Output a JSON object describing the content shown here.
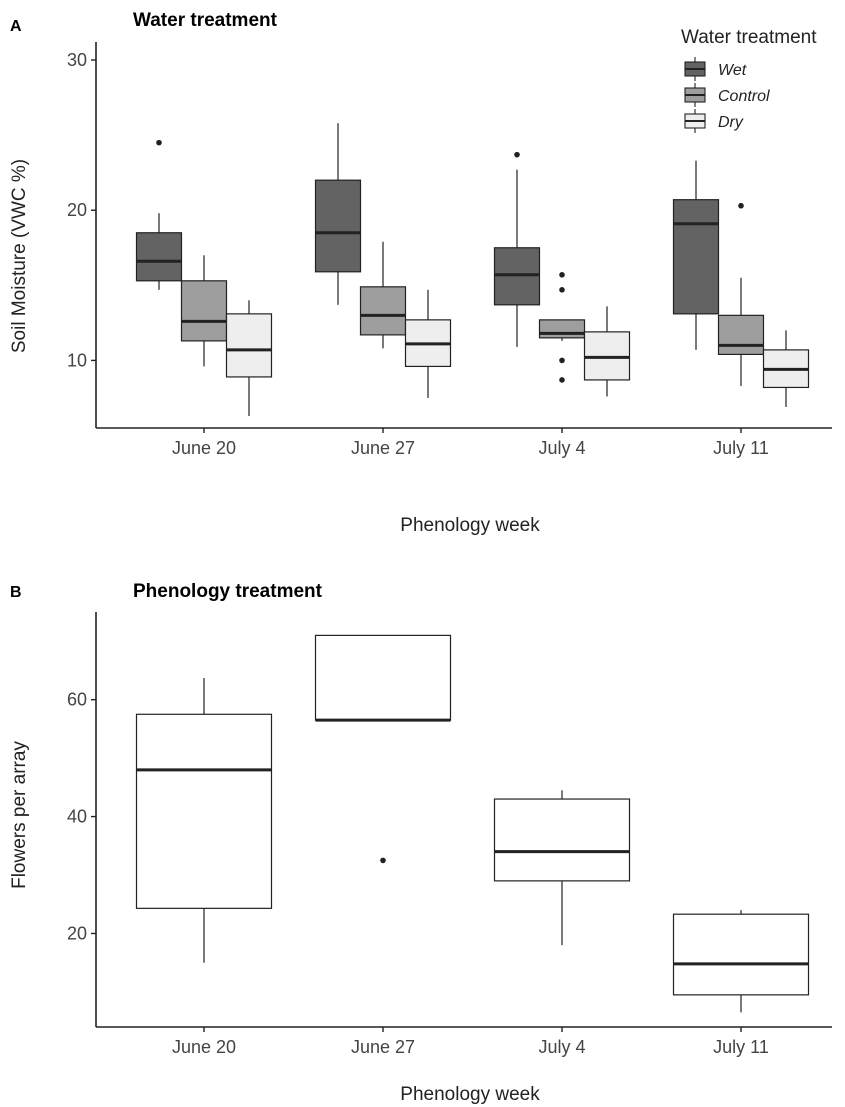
{
  "chart_data": [
    {
      "panel": "A",
      "type": "box",
      "title": "Water treatment",
      "xlabel": "Phenology week",
      "ylabel": "Soil Moisture (VWC %)",
      "ylim": [
        5.5,
        31.2
      ],
      "yticks": [
        10,
        20,
        30
      ],
      "categories": [
        "June 20",
        "June 27",
        "July 4",
        "July 11"
      ],
      "legend": {
        "title": "Water treatment",
        "position": "top-right"
      },
      "series": [
        {
          "name": "Wet",
          "color": "#636363",
          "boxes": [
            {
              "min": 14.7,
              "q1": 15.3,
              "median": 16.6,
              "q3": 18.5,
              "max": 19.8,
              "outliers": [
                24.5
              ]
            },
            {
              "min": 13.7,
              "q1": 15.9,
              "median": 18.5,
              "q3": 22.0,
              "max": 25.8,
              "outliers": []
            },
            {
              "min": 10.9,
              "q1": 13.7,
              "median": 15.7,
              "q3": 17.5,
              "max": 22.7,
              "outliers": [
                23.7
              ]
            },
            {
              "min": 10.7,
              "q1": 13.1,
              "median": 19.1,
              "q3": 20.7,
              "max": 23.3,
              "outliers": []
            }
          ]
        },
        {
          "name": "Control",
          "color": "#9e9e9e",
          "boxes": [
            {
              "min": 9.6,
              "q1": 11.3,
              "median": 12.6,
              "q3": 15.3,
              "max": 17.0,
              "outliers": []
            },
            {
              "min": 10.8,
              "q1": 11.7,
              "median": 13.0,
              "q3": 14.9,
              "max": 17.9,
              "outliers": []
            },
            {
              "min": 11.3,
              "q1": 11.5,
              "median": 11.8,
              "q3": 12.7,
              "max": 12.7,
              "outliers": [
                15.7,
                14.7,
                10.0,
                8.7
              ]
            },
            {
              "min": 8.3,
              "q1": 10.4,
              "median": 11.0,
              "q3": 13.0,
              "max": 15.5,
              "outliers": [
                20.3
              ]
            }
          ]
        },
        {
          "name": "Dry",
          "color": "#eeeeee",
          "boxes": [
            {
              "min": 6.3,
              "q1": 8.9,
              "median": 10.7,
              "q3": 13.1,
              "max": 14.0,
              "outliers": []
            },
            {
              "min": 7.5,
              "q1": 9.6,
              "median": 11.1,
              "q3": 12.7,
              "max": 14.7,
              "outliers": []
            },
            {
              "min": 7.6,
              "q1": 8.7,
              "median": 10.2,
              "q3": 11.9,
              "max": 13.6,
              "outliers": []
            },
            {
              "min": 6.9,
              "q1": 8.2,
              "median": 9.4,
              "q3": 10.7,
              "max": 12.0,
              "outliers": []
            }
          ]
        }
      ]
    },
    {
      "panel": "B",
      "type": "box",
      "title": "Phenology treatment",
      "xlabel": "Phenology week",
      "ylabel": "Flowers per array",
      "ylim": [
        4.0,
        75.0
      ],
      "yticks": [
        20,
        40,
        60
      ],
      "categories": [
        "June 20",
        "June 27",
        "July 4",
        "July 11"
      ],
      "series": [
        {
          "color": "#ffffff",
          "boxes": [
            {
              "min": 15.0,
              "q1": 24.3,
              "median": 48.0,
              "q3": 57.5,
              "max": 63.7,
              "outliers": []
            },
            {
              "min": 56.5,
              "q1": 56.5,
              "median": 56.5,
              "q3": 71.0,
              "max": 71.0,
              "outliers": [
                32.5
              ]
            },
            {
              "min": 18.0,
              "q1": 29.0,
              "median": 34.0,
              "q3": 43.0,
              "max": 44.5,
              "outliers": []
            },
            {
              "min": 6.5,
              "q1": 9.5,
              "median": 14.8,
              "q3": 23.3,
              "max": 24.0,
              "outliers": []
            }
          ]
        }
      ]
    }
  ]
}
